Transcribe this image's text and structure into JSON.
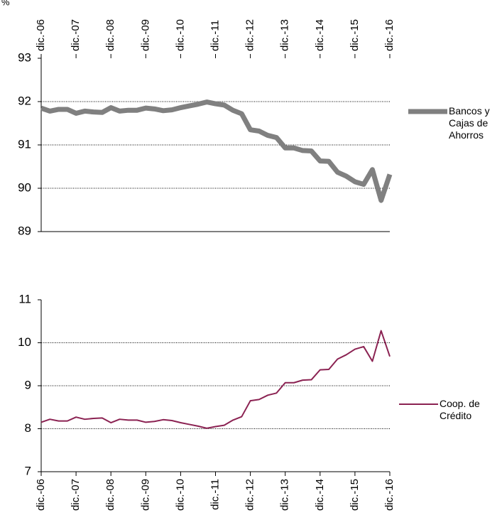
{
  "chart_data": [
    {
      "type": "line",
      "y_label": "%",
      "x_axis_position": "top",
      "categories": [
        "dic.-06",
        null,
        null,
        null,
        "dic.-07",
        null,
        null,
        null,
        "dic.-08",
        null,
        null,
        null,
        "dic.-09",
        null,
        null,
        null,
        "dic.-10",
        null,
        null,
        null,
        "dic.-11",
        null,
        null,
        null,
        "dic.-12",
        null,
        null,
        null,
        "dic.-13",
        null,
        null,
        null,
        "dic.-14",
        null,
        null,
        null,
        "dic.-15",
        null,
        null,
        null,
        "dic.-16"
      ],
      "series": [
        {
          "name": "Bancos y Cajas de Ahorros",
          "color": "#808080",
          "values": [
            91.85,
            91.78,
            91.82,
            91.82,
            91.73,
            91.78,
            91.76,
            91.75,
            91.86,
            91.78,
            91.8,
            91.8,
            91.85,
            91.83,
            91.79,
            91.81,
            91.86,
            91.9,
            91.94,
            91.99,
            91.95,
            91.92,
            91.8,
            91.72,
            91.35,
            91.32,
            91.22,
            91.17,
            90.93,
            90.93,
            90.87,
            90.86,
            90.63,
            90.62,
            90.37,
            90.28,
            90.15,
            90.09,
            90.43,
            89.72,
            90.32
          ]
        }
      ],
      "ylim": [
        89,
        93
      ],
      "yticks": [
        89,
        90,
        91,
        92,
        93
      ],
      "grid": true
    },
    {
      "type": "line",
      "x_axis_position": "bottom",
      "categories": [
        "dic.-06",
        null,
        null,
        null,
        "dic.-07",
        null,
        null,
        null,
        "dic.-08",
        null,
        null,
        null,
        "dic.-09",
        null,
        null,
        null,
        "dic.-10",
        null,
        null,
        null,
        "dic.-11",
        null,
        null,
        null,
        "dic.-12",
        null,
        null,
        null,
        "dic.-13",
        null,
        null,
        null,
        "dic.-14",
        null,
        null,
        null,
        "dic.-15",
        null,
        null,
        null,
        "dic.-16"
      ],
      "series": [
        {
          "name": "Coop. de Crédito",
          "color": "#8b2252",
          "values": [
            8.15,
            8.22,
            8.18,
            8.18,
            8.27,
            8.22,
            8.24,
            8.25,
            8.14,
            8.22,
            8.2,
            8.2,
            8.15,
            8.17,
            8.21,
            8.19,
            8.14,
            8.1,
            8.06,
            8.01,
            8.05,
            8.08,
            8.2,
            8.28,
            8.65,
            8.68,
            8.78,
            8.83,
            9.07,
            9.07,
            9.13,
            9.14,
            9.37,
            9.38,
            9.62,
            9.72,
            9.85,
            9.91,
            9.57,
            10.28,
            9.68
          ]
        }
      ],
      "ylim": [
        7,
        11
      ],
      "yticks": [
        7,
        8,
        9,
        10,
        11
      ],
      "grid": true
    }
  ]
}
